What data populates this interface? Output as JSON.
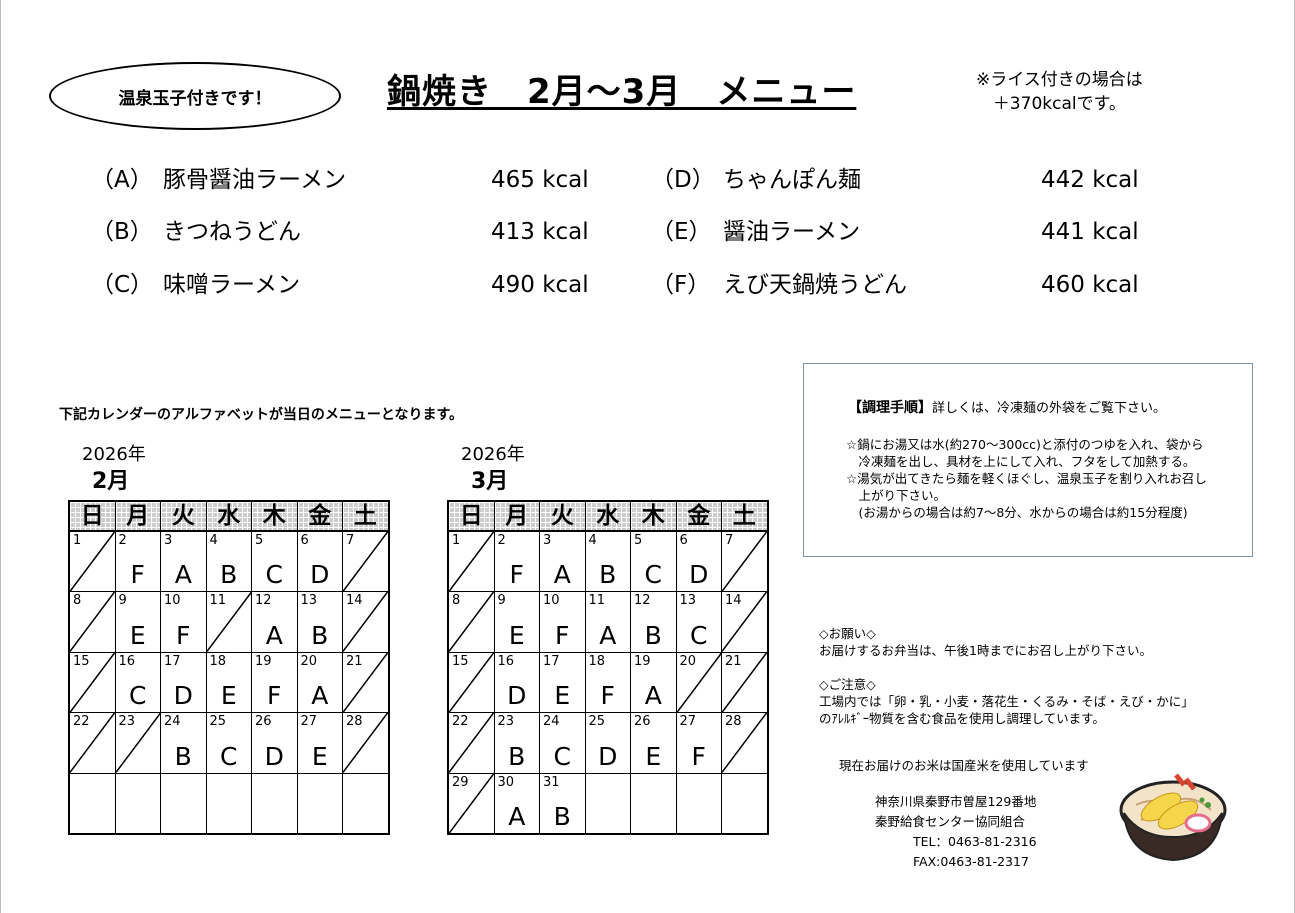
{
  "badge": "温泉玉子付きです！",
  "title": "鍋焼き　2月～3月　メニュー",
  "rice_note": [
    "※ライス付きの場合は",
    "＋370kcalです。"
  ],
  "menu": [
    {
      "code": "（A）",
      "name": "豚骨醤油ラーメン",
      "kcal": "465 kcal"
    },
    {
      "code": "（B）",
      "name": "きつねうどん",
      "kcal": "413 kcal"
    },
    {
      "code": "（C）",
      "name": "味噌ラーメン",
      "kcal": "490 kcal"
    },
    {
      "code": "（D）",
      "name": "ちゃんぽん麺",
      "kcal": "442 kcal"
    },
    {
      "code": "（E）",
      "name": "醤油ラーメン",
      "kcal": "441 kcal"
    },
    {
      "code": "（F）",
      "name": "えび天鍋焼うどん",
      "kcal": "460 kcal"
    }
  ],
  "lead": "下記カレンダーのアルファベットが当日のメニューとなります。",
  "weekdays": [
    "日",
    "月",
    "火",
    "水",
    "木",
    "金",
    "土"
  ],
  "calendars": [
    {
      "year": "2026年",
      "month": "2月",
      "weeks": [
        [
          [
            "1",
            "/"
          ],
          [
            "2",
            "F"
          ],
          [
            "3",
            "A"
          ],
          [
            "4",
            "B"
          ],
          [
            "5",
            "C"
          ],
          [
            "6",
            "D"
          ],
          [
            "7",
            "/"
          ]
        ],
        [
          [
            "8",
            "/"
          ],
          [
            "9",
            "E"
          ],
          [
            "10",
            "F"
          ],
          [
            "11",
            "/"
          ],
          [
            "12",
            "A"
          ],
          [
            "13",
            "B"
          ],
          [
            "14",
            "/"
          ]
        ],
        [
          [
            "15",
            "/"
          ],
          [
            "16",
            "C"
          ],
          [
            "17",
            "D"
          ],
          [
            "18",
            "E"
          ],
          [
            "19",
            "F"
          ],
          [
            "20",
            "A"
          ],
          [
            "21",
            "/"
          ]
        ],
        [
          [
            "22",
            "/"
          ],
          [
            "23",
            "/"
          ],
          [
            "24",
            "B"
          ],
          [
            "25",
            "C"
          ],
          [
            "26",
            "D"
          ],
          [
            "27",
            "E"
          ],
          [
            "28",
            "/"
          ]
        ],
        [
          null,
          null,
          null,
          null,
          null,
          null,
          null
        ]
      ]
    },
    {
      "year": "2026年",
      "month": "3月",
      "weeks": [
        [
          [
            "1",
            "/"
          ],
          [
            "2",
            "F"
          ],
          [
            "3",
            "A"
          ],
          [
            "4",
            "B"
          ],
          [
            "5",
            "C"
          ],
          [
            "6",
            "D"
          ],
          [
            "7",
            "/"
          ]
        ],
        [
          [
            "8",
            "/"
          ],
          [
            "9",
            "E"
          ],
          [
            "10",
            "F"
          ],
          [
            "11",
            "A"
          ],
          [
            "12",
            "B"
          ],
          [
            "13",
            "C"
          ],
          [
            "14",
            "/"
          ]
        ],
        [
          [
            "15",
            "/"
          ],
          [
            "16",
            "D"
          ],
          [
            "17",
            "E"
          ],
          [
            "18",
            "F"
          ],
          [
            "19",
            "A"
          ],
          [
            "20",
            "/"
          ],
          [
            "21",
            "/"
          ]
        ],
        [
          [
            "22",
            "/"
          ],
          [
            "23",
            "B"
          ],
          [
            "24",
            "C"
          ],
          [
            "25",
            "D"
          ],
          [
            "26",
            "E"
          ],
          [
            "27",
            "F"
          ],
          [
            "28",
            "/"
          ]
        ],
        [
          [
            "29",
            "/"
          ],
          [
            "30",
            "A"
          ],
          [
            "31",
            "B"
          ],
          null,
          null,
          null,
          null
        ]
      ]
    }
  ],
  "cooking": {
    "heading": "【調理手順】",
    "intro": "詳しくは、冷凍麺の外袋をご覧下さい。",
    "lines": [
      "☆鍋にお湯又は水(約270～300cc)と添付のつゆを入れ、袋から",
      "　冷凍麺を出し、具材を上にして入れ、フタをして加熱する。",
      "☆湯気が出てきたら麺を軽くほぐし、温泉玉子を割り入れお召し",
      "　上がり下さい。",
      "　(お湯からの場合は約7～8分、水からの場合は約15分程度)"
    ]
  },
  "notes": {
    "request_title": "◇お願い◇",
    "request": "お届けするお弁当は、午後1時までにお召し上がり下さい。",
    "caution_title": "◇ご注意◇",
    "caution": [
      "工場内では「卵・乳・小麦・落花生・くるみ・そば・えび・かに」",
      "のｱﾚﾙｷﾞｰ物質を含む食品を使用し調理しています。"
    ],
    "rice": "現在お届けのお米は国産米を使用しています"
  },
  "company": {
    "address": "神奈川県秦野市曽屋129番地",
    "name": "秦野給食センター協同組合",
    "tel": "TEL：0463-81-2316",
    "fax": "FAX:0463-81-2317"
  },
  "icons": {
    "bowl": "nabeyaki-udon-bowl-illustration"
  }
}
